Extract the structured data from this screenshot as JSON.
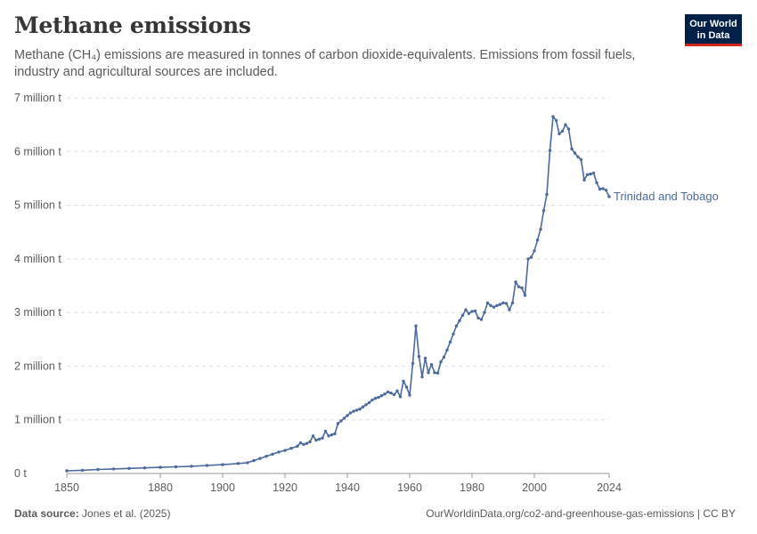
{
  "header": {
    "title": "Methane emissions",
    "subtitle": "Methane (CH₄) emissions are measured in tonnes of carbon dioxide-equivalents. Emissions from fossil fuels, industry and agricultural sources are included."
  },
  "logo": {
    "line1": "Our World",
    "line2": "in Data"
  },
  "footer": {
    "source_label": "Data source:",
    "source_value": "Jones et al. (2025)",
    "url": "OurWorldinData.org/co2-and-greenhouse-gas-emissions | CC BY"
  },
  "colors": {
    "series": "#4c6a9c",
    "grid": "#dddddd",
    "axis": "#999999"
  },
  "chart_data": {
    "type": "line",
    "title": "Methane emissions",
    "xlabel": "",
    "ylabel": "",
    "xlim": [
      1850,
      2024
    ],
    "ylim": [
      0,
      7000000
    ],
    "x_ticks": [
      1850,
      1880,
      1900,
      1920,
      1940,
      1960,
      1980,
      2000,
      2024
    ],
    "y_ticks": [
      {
        "value": 0,
        "label": "0 t"
      },
      {
        "value": 1000000,
        "label": "1 million t"
      },
      {
        "value": 2000000,
        "label": "2 million t"
      },
      {
        "value": 3000000,
        "label": "3 million t"
      },
      {
        "value": 4000000,
        "label": "4 million t"
      },
      {
        "value": 5000000,
        "label": "5 million t"
      },
      {
        "value": 6000000,
        "label": "6 million t"
      },
      {
        "value": 7000000,
        "label": "7 million t"
      }
    ],
    "grid": true,
    "series": [
      {
        "name": "Trinidad and Tobago",
        "points": [
          [
            1850,
            50000
          ],
          [
            1855,
            60000
          ],
          [
            1860,
            75000
          ],
          [
            1865,
            85000
          ],
          [
            1870,
            95000
          ],
          [
            1875,
            105000
          ],
          [
            1880,
            115000
          ],
          [
            1885,
            125000
          ],
          [
            1890,
            135000
          ],
          [
            1895,
            150000
          ],
          [
            1900,
            165000
          ],
          [
            1905,
            185000
          ],
          [
            1908,
            200000
          ],
          [
            1910,
            240000
          ],
          [
            1912,
            280000
          ],
          [
            1914,
            320000
          ],
          [
            1916,
            360000
          ],
          [
            1918,
            400000
          ],
          [
            1920,
            430000
          ],
          [
            1922,
            470000
          ],
          [
            1924,
            510000
          ],
          [
            1925,
            570000
          ],
          [
            1926,
            540000
          ],
          [
            1927,
            560000
          ],
          [
            1928,
            590000
          ],
          [
            1929,
            700000
          ],
          [
            1930,
            620000
          ],
          [
            1931,
            640000
          ],
          [
            1932,
            660000
          ],
          [
            1933,
            790000
          ],
          [
            1934,
            700000
          ],
          [
            1935,
            720000
          ],
          [
            1936,
            740000
          ],
          [
            1937,
            930000
          ],
          [
            1938,
            980000
          ],
          [
            1939,
            1030000
          ],
          [
            1940,
            1080000
          ],
          [
            1941,
            1130000
          ],
          [
            1942,
            1160000
          ],
          [
            1943,
            1180000
          ],
          [
            1944,
            1200000
          ],
          [
            1945,
            1240000
          ],
          [
            1946,
            1280000
          ],
          [
            1947,
            1320000
          ],
          [
            1948,
            1370000
          ],
          [
            1949,
            1400000
          ],
          [
            1950,
            1420000
          ],
          [
            1951,
            1450000
          ],
          [
            1952,
            1480000
          ],
          [
            1953,
            1520000
          ],
          [
            1954,
            1500000
          ],
          [
            1955,
            1470000
          ],
          [
            1956,
            1540000
          ],
          [
            1957,
            1430000
          ],
          [
            1958,
            1720000
          ],
          [
            1959,
            1610000
          ],
          [
            1960,
            1460000
          ],
          [
            1961,
            2050000
          ],
          [
            1962,
            2750000
          ],
          [
            1963,
            2180000
          ],
          [
            1964,
            1800000
          ],
          [
            1965,
            2150000
          ],
          [
            1966,
            1880000
          ],
          [
            1967,
            2030000
          ],
          [
            1968,
            1880000
          ],
          [
            1969,
            1870000
          ],
          [
            1970,
            2080000
          ],
          [
            1971,
            2170000
          ],
          [
            1972,
            2300000
          ],
          [
            1973,
            2450000
          ],
          [
            1974,
            2600000
          ],
          [
            1975,
            2750000
          ],
          [
            1976,
            2850000
          ],
          [
            1977,
            2950000
          ],
          [
            1978,
            3050000
          ],
          [
            1979,
            2980000
          ],
          [
            1980,
            3020000
          ],
          [
            1981,
            3030000
          ],
          [
            1982,
            2900000
          ],
          [
            1983,
            2870000
          ],
          [
            1984,
            3000000
          ],
          [
            1985,
            3180000
          ],
          [
            1986,
            3130000
          ],
          [
            1987,
            3100000
          ],
          [
            1988,
            3130000
          ],
          [
            1989,
            3150000
          ],
          [
            1990,
            3180000
          ],
          [
            1991,
            3170000
          ],
          [
            1992,
            3050000
          ],
          [
            1993,
            3180000
          ],
          [
            1994,
            3570000
          ],
          [
            1995,
            3480000
          ],
          [
            1996,
            3460000
          ],
          [
            1997,
            3320000
          ],
          [
            1998,
            4000000
          ],
          [
            1999,
            4030000
          ],
          [
            2000,
            4150000
          ],
          [
            2001,
            4350000
          ],
          [
            2002,
            4550000
          ],
          [
            2003,
            4900000
          ],
          [
            2004,
            5200000
          ],
          [
            2005,
            6020000
          ],
          [
            2006,
            6650000
          ],
          [
            2007,
            6580000
          ],
          [
            2008,
            6330000
          ],
          [
            2009,
            6380000
          ],
          [
            2010,
            6500000
          ],
          [
            2011,
            6420000
          ],
          [
            2012,
            6050000
          ],
          [
            2013,
            5970000
          ],
          [
            2014,
            5900000
          ],
          [
            2015,
            5850000
          ],
          [
            2016,
            5470000
          ],
          [
            2017,
            5570000
          ],
          [
            2018,
            5580000
          ],
          [
            2019,
            5600000
          ],
          [
            2020,
            5420000
          ],
          [
            2021,
            5300000
          ],
          [
            2022,
            5310000
          ],
          [
            2023,
            5280000
          ],
          [
            2024,
            5160000
          ]
        ]
      }
    ]
  }
}
